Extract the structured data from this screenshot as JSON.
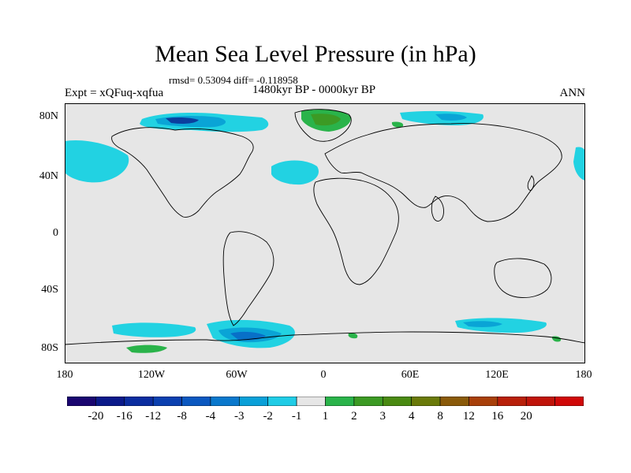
{
  "title": "Mean Sea Level Pressure (in hPa)",
  "stats": "rmsd= 0.53094 diff= -0.118958",
  "period": "1480kyr BP - 0000kyr BP",
  "expt": "Expt = xQFuq-xqfua",
  "season": "ANN",
  "lat_ticks": [
    "80N",
    "40N",
    "0",
    "40S",
    "80S"
  ],
  "lon_ticks": [
    "180",
    "120W",
    "60W",
    "0",
    "60E",
    "120E",
    "180"
  ],
  "colors": {
    "background": "#e6e6e6",
    "coast": "#000000",
    "light_blue": "#22d2e2",
    "mid_blue": "#0aa4d6",
    "blue": "#0870c8",
    "dark_blue": "#0b3f9e",
    "green": "#2ab34a",
    "dark_green": "#3c9a24"
  },
  "colorbar": {
    "colors": [
      "#1a0670",
      "#0b1a8a",
      "#0b2da0",
      "#0b40b0",
      "#0b58c0",
      "#0a78cc",
      "#0aa0d8",
      "#20cce6",
      "#e6e6e6",
      "#2ab34a",
      "#3c9a24",
      "#4a8a12",
      "#6a7a0a",
      "#8a5a0a",
      "#a8400a",
      "#b8200a",
      "#c0140a",
      "#d00808"
    ],
    "labels": [
      "-20",
      "-16",
      "-12",
      "-8",
      "-4",
      "-3",
      "-2",
      "-1",
      "1",
      "2",
      "3",
      "4",
      "8",
      "12",
      "16",
      "20"
    ]
  }
}
